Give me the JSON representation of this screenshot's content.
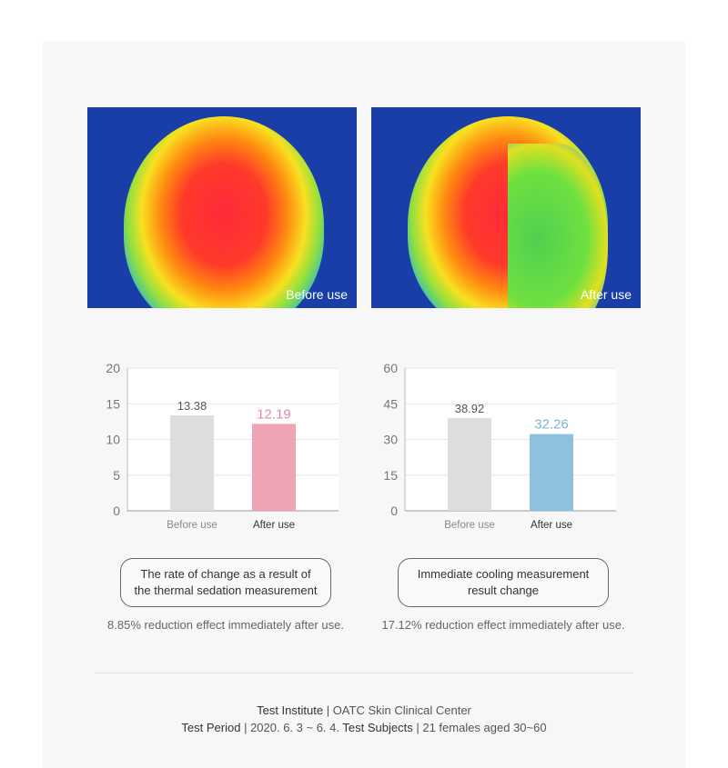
{
  "images": [
    {
      "label": "Before use",
      "icon": "thermal-face-before"
    },
    {
      "label": "After use",
      "icon": "thermal-face-after"
    }
  ],
  "chart_data": [
    {
      "type": "bar",
      "categories": [
        "Before use",
        "After use"
      ],
      "values": [
        13.38,
        12.19
      ],
      "data_labels": [
        "13.38",
        "12.19"
      ],
      "ylim": [
        0,
        20
      ],
      "yticks": [
        0,
        5,
        10,
        15,
        20
      ],
      "grid": true,
      "colors": [
        "#dedcdd",
        "#efa3b4"
      ],
      "label_colors": [
        "#555555",
        "#e48aa0"
      ]
    },
    {
      "type": "bar",
      "categories": [
        "Before use",
        "After use"
      ],
      "values": [
        38.92,
        32.26
      ],
      "data_labels": [
        "38.92",
        "32.26"
      ],
      "ylim": [
        0,
        60
      ],
      "yticks": [
        0,
        15,
        30,
        45,
        60
      ],
      "grid": true,
      "colors": [
        "#dedcdd",
        "#8ec1df"
      ],
      "label_colors": [
        "#555555",
        "#7db6d8"
      ]
    }
  ],
  "captions": [
    {
      "title_line1": "The rate of change as a result of",
      "title_line2": "the thermal sedation measurement",
      "note": "8.85% reduction effect immediately after use."
    },
    {
      "title_line1": "Immediate cooling measurement",
      "title_line2": "result change",
      "note": "17.12% reduction effect immediately after use."
    }
  ],
  "footer": {
    "institute_label": "Test Institute",
    "institute_sep": " | ",
    "institute_value": "OATC Skin Clinical Center",
    "period_label": "Test Period",
    "period_sep": " | ",
    "period_value": "2020. 6. 3 ~ 6. 4.",
    "subjects_label": "Test Subjects",
    "subjects_sep": " | ",
    "subjects_value": "21 females aged 30~60"
  }
}
